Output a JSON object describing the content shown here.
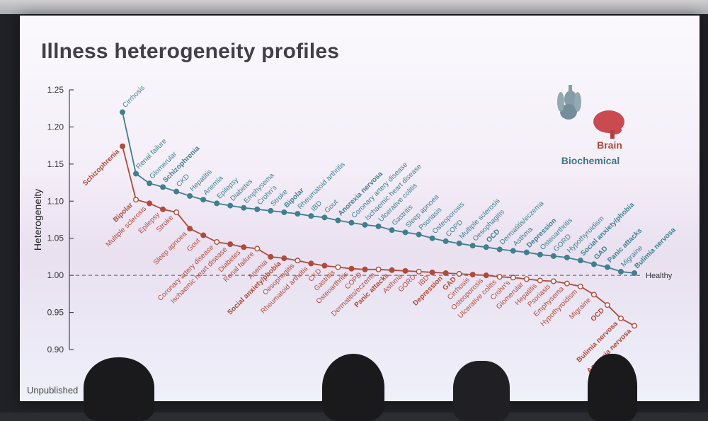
{
  "slide": {
    "title": "Illness heterogeneity profiles",
    "footer": "Unpublished"
  },
  "legend": {
    "brain": "Brain",
    "biochemical": "Biochemical"
  },
  "colors": {
    "biochemical": "#3f7f90",
    "brain": "#b04a3a",
    "title": "#404046"
  },
  "chart_data": {
    "type": "line",
    "title": "",
    "ylabel": "Heterogeneity",
    "ylim": [
      0.9,
      1.25
    ],
    "yticks": [
      1.25,
      1.2,
      1.15,
      1.1,
      1.05,
      1.0,
      0.95,
      0.9
    ],
    "reference_line": {
      "y": 1.0,
      "label": "Healthy"
    },
    "series": [
      {
        "name": "Biochemical",
        "color": "#3f7f90",
        "points": [
          {
            "label": "Cirrhosis",
            "y": 1.22
          },
          {
            "label": "Renal failure",
            "y": 1.137
          },
          {
            "label": "Glomerular",
            "y": 1.124
          },
          {
            "label": "Schizophrenia",
            "y": 1.119,
            "bold": true
          },
          {
            "label": "CKD",
            "y": 1.113
          },
          {
            "label": "Hepatitis",
            "y": 1.107
          },
          {
            "label": "Anemia",
            "y": 1.102
          },
          {
            "label": "Epilepsy",
            "y": 1.097
          },
          {
            "label": "Diabetes",
            "y": 1.094
          },
          {
            "label": "Emphysema",
            "y": 1.091
          },
          {
            "label": "Crohn's",
            "y": 1.089
          },
          {
            "label": "Stroke",
            "y": 1.087
          },
          {
            "label": "Bipolar",
            "y": 1.085,
            "bold": true
          },
          {
            "label": "Rheumatoid arthritis",
            "y": 1.083
          },
          {
            "label": "IBD",
            "y": 1.08
          },
          {
            "label": "Gout",
            "y": 1.078
          },
          {
            "label": "Anorexia nervosa",
            "y": 1.074,
            "bold": true
          },
          {
            "label": "Coronary artery disease",
            "y": 1.071
          },
          {
            "label": "Ischaemic heart disease",
            "y": 1.068
          },
          {
            "label": "Ulcerative colitis",
            "y": 1.066
          },
          {
            "label": "Gastritis",
            "y": 1.061
          },
          {
            "label": "Sleep apnoea",
            "y": 1.058
          },
          {
            "label": "Psoriasis",
            "y": 1.055
          },
          {
            "label": "Osteoporosis",
            "y": 1.05
          },
          {
            "label": "COPD",
            "y": 1.046
          },
          {
            "label": "Multiple sclerosis",
            "y": 1.043
          },
          {
            "label": "Oesophagitis",
            "y": 1.04
          },
          {
            "label": "OCD",
            "y": 1.038,
            "bold": true
          },
          {
            "label": "Dermatitis/eczema",
            "y": 1.035
          },
          {
            "label": "Asthma",
            "y": 1.033
          },
          {
            "label": "Depression",
            "y": 1.031,
            "bold": true
          },
          {
            "label": "Osteoarthritis",
            "y": 1.028
          },
          {
            "label": "GORD",
            "y": 1.026
          },
          {
            "label": "Hypothyroidism",
            "y": 1.024
          },
          {
            "label": "Social anxiety/phobia",
            "y": 1.02,
            "bold": true
          },
          {
            "label": "GAD",
            "y": 1.015,
            "bold": true
          },
          {
            "label": "Panic attacks",
            "y": 1.011,
            "bold": true
          },
          {
            "label": "Migraine",
            "y": 1.005
          },
          {
            "label": "Bulimia nervosa",
            "y": 1.003,
            "bold": true
          }
        ]
      },
      {
        "name": "Brain",
        "color": "#b04a3a",
        "points": [
          {
            "label": "Schizophrenia",
            "y": 1.174,
            "bold": true
          },
          {
            "label": "Bipolar",
            "y": 1.102,
            "bold": true
          },
          {
            "label": "Multiple sclerosis",
            "y": 1.097
          },
          {
            "label": "Epilepsy",
            "y": 1.089
          },
          {
            "label": "Stroke",
            "y": 1.085
          },
          {
            "label": "Sleep apnoea",
            "y": 1.063
          },
          {
            "label": "Gout",
            "y": 1.054
          },
          {
            "label": "Coronary artery disease",
            "y": 1.045
          },
          {
            "label": "Ischaemic heart disease",
            "y": 1.042
          },
          {
            "label": "Diabetes",
            "y": 1.038
          },
          {
            "label": "Renal failure",
            "y": 1.036
          },
          {
            "label": "Anemia",
            "y": 1.025
          },
          {
            "label": "Social anxiety/phobia",
            "y": 1.023,
            "bold": true
          },
          {
            "label": "Oesophagitis",
            "y": 1.02
          },
          {
            "label": "Rheumatoid arthritis",
            "y": 1.016
          },
          {
            "label": "CKD",
            "y": 1.013
          },
          {
            "label": "Gastritis",
            "y": 1.011
          },
          {
            "label": "Osteoarthritis",
            "y": 1.009
          },
          {
            "label": "COPD",
            "y": 1.008
          },
          {
            "label": "Dermatitis/eczema",
            "y": 1.008
          },
          {
            "label": "Panic attacks",
            "y": 1.007,
            "bold": true
          },
          {
            "label": "Asthma",
            "y": 1.006
          },
          {
            "label": "GORD",
            "y": 1.005
          },
          {
            "label": "IBD",
            "y": 1.004
          },
          {
            "label": "Depression",
            "y": 1.003,
            "bold": true
          },
          {
            "label": "GAD",
            "y": 1.002,
            "bold": true
          },
          {
            "label": "Cirrhosis",
            "y": 1.001
          },
          {
            "label": "Osteoporosis",
            "y": 1.0
          },
          {
            "label": "Ulcerative colitis",
            "y": 0.998
          },
          {
            "label": "Crohn's",
            "y": 0.997
          },
          {
            "label": "Glomerular",
            "y": 0.995
          },
          {
            "label": "Hepatitis",
            "y": 0.993
          },
          {
            "label": "Psoriasis",
            "y": 0.992
          },
          {
            "label": "Emphysema",
            "y": 0.989
          },
          {
            "label": "Hypothyroidism",
            "y": 0.985
          },
          {
            "label": "Migraine",
            "y": 0.974
          },
          {
            "label": "OCD",
            "y": 0.96,
            "bold": true
          },
          {
            "label": "Bulimia nervosa",
            "y": 0.942,
            "bold": true
          },
          {
            "label": "Anorexia nervosa",
            "y": 0.932,
            "bold": true
          }
        ]
      }
    ]
  }
}
